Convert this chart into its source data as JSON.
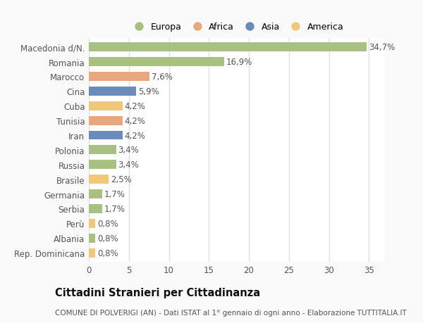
{
  "categories": [
    "Macedonia d/N.",
    "Romania",
    "Marocco",
    "Cina",
    "Cuba",
    "Tunisia",
    "Iran",
    "Polonia",
    "Russia",
    "Brasile",
    "Germania",
    "Serbia",
    "Perù",
    "Albania",
    "Rep. Dominicana"
  ],
  "values": [
    34.7,
    16.9,
    7.6,
    5.9,
    4.2,
    4.2,
    4.2,
    3.4,
    3.4,
    2.5,
    1.7,
    1.7,
    0.8,
    0.8,
    0.8
  ],
  "labels": [
    "34,7%",
    "16,9%",
    "7,6%",
    "5,9%",
    "4,2%",
    "4,2%",
    "4,2%",
    "3,4%",
    "3,4%",
    "2,5%",
    "1,7%",
    "1,7%",
    "0,8%",
    "0,8%",
    "0,8%"
  ],
  "colors": [
    "#a8c080",
    "#a8c080",
    "#e8a87c",
    "#6b8cba",
    "#f0c87c",
    "#e8a87c",
    "#6b8cba",
    "#a8c080",
    "#a8c080",
    "#f0c87c",
    "#a8c080",
    "#a8c080",
    "#f0c87c",
    "#a8c080",
    "#f0c87c"
  ],
  "legend_labels": [
    "Europa",
    "Africa",
    "Asia",
    "America"
  ],
  "legend_colors": [
    "#a8c080",
    "#e8a87c",
    "#6b8cba",
    "#f0c87c"
  ],
  "title": "Cittadini Stranieri per Cittadinanza",
  "subtitle": "COMUNE DI POLVERIGI (AN) - Dati ISTAT al 1° gennaio di ogni anno - Elaborazione TUTTITALIA.IT",
  "xlim": [
    0,
    37
  ],
  "xticks": [
    0,
    5,
    10,
    15,
    20,
    25,
    30,
    35
  ],
  "bg_color": "#f9f9f9",
  "plot_bg_color": "#ffffff",
  "grid_color": "#e0e0e0",
  "bar_height": 0.62,
  "label_fontsize": 8.5,
  "tick_fontsize": 8.5,
  "title_fontsize": 10.5,
  "subtitle_fontsize": 7.5
}
